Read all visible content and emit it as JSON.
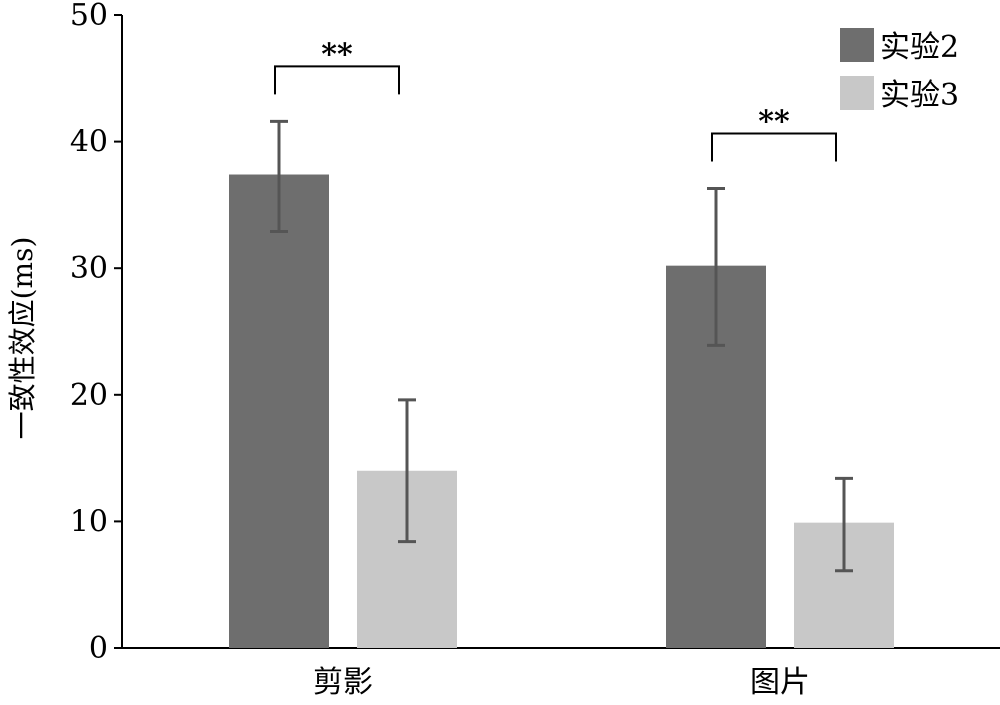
{
  "chart_data": {
    "type": "bar",
    "categories": [
      "剪影",
      "图片"
    ],
    "series": [
      {
        "name": "实验2",
        "values": [
          37.4,
          30.2
        ],
        "errors": [
          [
            32.9,
            41.6
          ],
          [
            23.9,
            36.3
          ]
        ],
        "color": "#6e6e6e"
      },
      {
        "name": "实验3",
        "values": [
          14.0,
          9.9
        ],
        "errors": [
          [
            8.4,
            19.6
          ],
          [
            6.1,
            13.4
          ]
        ],
        "color": "#c8c8c8"
      }
    ],
    "ylabel": "一致性效应(ms)",
    "ylim": [
      0,
      50
    ],
    "yticks": [
      "0",
      "10",
      "20",
      "30",
      "40",
      "50"
    ],
    "significance": [
      {
        "category": "剪影",
        "label": "**"
      },
      {
        "category": "图片",
        "label": "**"
      }
    ],
    "legend_position": "top-right",
    "grid": false,
    "error_bar_color": "#555555"
  }
}
